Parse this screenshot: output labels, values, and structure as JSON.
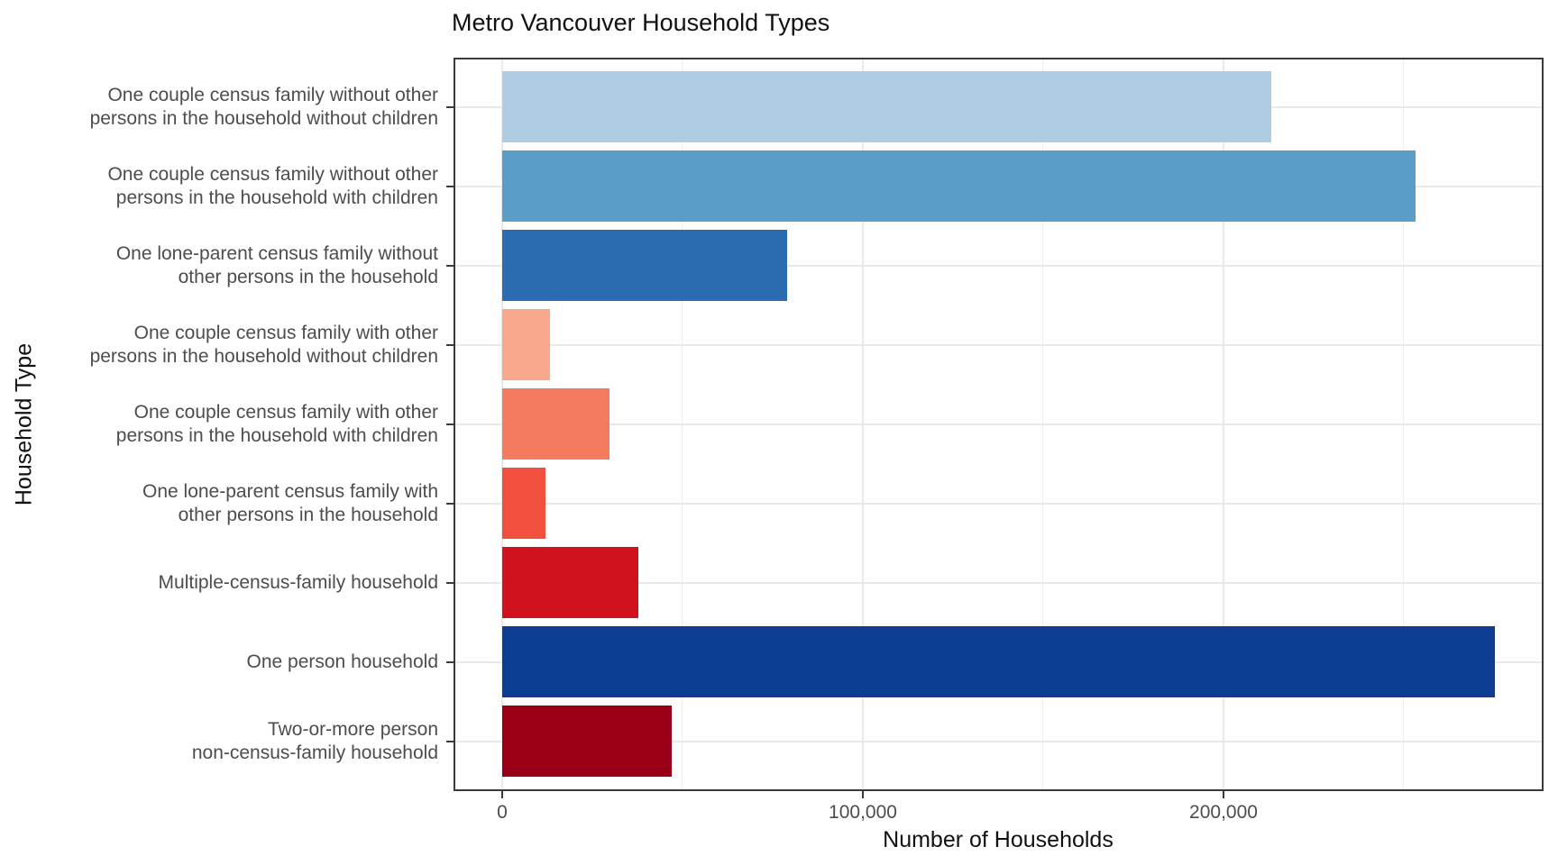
{
  "chart_data": {
    "type": "bar",
    "orientation": "horizontal",
    "title": "Metro Vancouver Household Types",
    "xlabel": "Number of Households",
    "ylabel": "Household Type",
    "xlim": [
      0,
      288750
    ],
    "grid": true,
    "legend": false,
    "x_major_ticks": [
      {
        "value": 0,
        "label": "0"
      },
      {
        "value": 100000,
        "label": "100,000"
      },
      {
        "value": 200000,
        "label": "200,000"
      }
    ],
    "x_minor_ticks": [
      50000,
      150000,
      250000
    ],
    "categories": [
      "One couple census family without other\npersons in the household without children",
      "One couple census family without other\npersons in the household with children",
      "One lone-parent census family without\nother persons in the household",
      "One couple census family with other\npersons in the household without children",
      "One couple census family with other\npersons in the household with children",
      "One lone-parent census family with\nother persons in the household",
      "Multiple-census-family household",
      "One person household",
      "Two-or-more person\nnon-census-family household"
    ],
    "values": [
      213250,
      253250,
      79000,
      13250,
      29750,
      12000,
      37750,
      275250,
      47000
    ],
    "bar_colors": [
      "#aecde2",
      "#5b9dc9",
      "#2b6db0",
      "#f8a98b",
      "#f57b5e",
      "#f2503e",
      "#d0121f",
      "#0d3d92",
      "#990017"
    ]
  },
  "colors": {
    "axis_text": "#4d4d4d",
    "title_text": "#111111",
    "grid_major": "#e9e9e9",
    "grid_minor": "#efefef",
    "panel_border": "#3a3a3a",
    "background": "#ffffff"
  }
}
